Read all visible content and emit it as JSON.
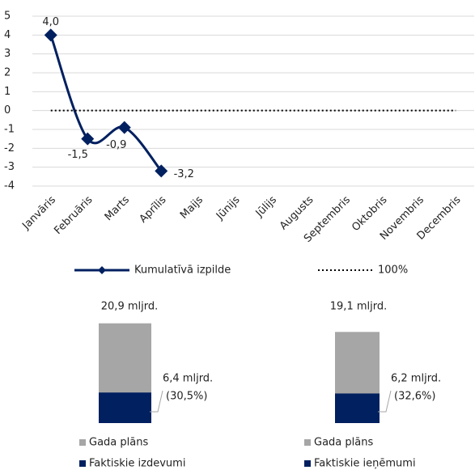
{
  "chart_data": [
    {
      "type": "line",
      "categories": [
        "Janvāris",
        "Februāris",
        "Marts",
        "Aprīlis",
        "Maijs",
        "Jūnijs",
        "Jūlijs",
        "Augusts",
        "Septembris",
        "Oktobris",
        "Novembris",
        "Decembris"
      ],
      "series": [
        {
          "name": "Kumulatīvā izpilde",
          "color": "#002060",
          "values": [
            4.0,
            -1.5,
            -0.9,
            -3.2,
            null,
            null,
            null,
            null,
            null,
            null,
            null,
            null
          ],
          "value_labels": [
            "4,0",
            "-1,5",
            "-0,9",
            "-3,2",
            null,
            null,
            null,
            null,
            null,
            null,
            null,
            null
          ],
          "marker": "diamond",
          "smooth": true
        },
        {
          "name": "100%",
          "color": "#000000",
          "values": [
            0,
            0,
            0,
            0,
            0,
            0,
            0,
            0,
            0,
            0,
            0,
            0
          ],
          "dash": "dotted"
        }
      ],
      "ylim": [
        -4,
        5
      ],
      "yticks": [
        -4,
        -3,
        -2,
        -1,
        0,
        1,
        2,
        3,
        4,
        5
      ],
      "grid": true,
      "legend": "bottom"
    },
    {
      "type": "bar",
      "series": [
        {
          "name": "Gada plāns",
          "color": "#a6a6a6",
          "values": [
            20.9
          ],
          "value_labels": [
            "20,9 mljrd."
          ]
        },
        {
          "name": "Faktiskie izdevumi",
          "color": "#002060",
          "values": [
            6.4
          ],
          "value_labels": [
            "6,4 mljrd."
          ],
          "share_labels": [
            "(30,5%)"
          ]
        }
      ],
      "legend": "bottom"
    },
    {
      "type": "bar",
      "series": [
        {
          "name": "Gada plāns",
          "color": "#a6a6a6",
          "values": [
            19.1
          ],
          "value_labels": [
            "19,1 mljrd."
          ]
        },
        {
          "name": "Faktiskie ieņēmumi",
          "color": "#002060",
          "values": [
            6.2
          ],
          "value_labels": [
            "6,2 mljrd."
          ],
          "share_labels": [
            "(32,6%)"
          ]
        }
      ],
      "legend": "bottom"
    }
  ]
}
